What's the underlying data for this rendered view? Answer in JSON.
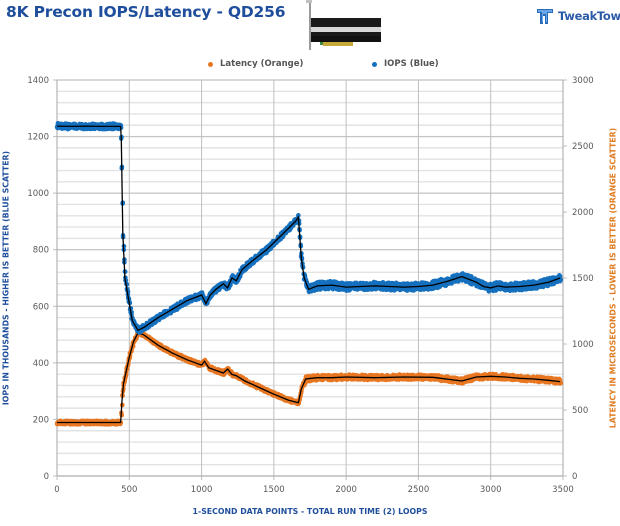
{
  "header": {
    "title": "8K Precon IOPS/Latency - QD256",
    "logo_text": "TweakTown",
    "product_image": "pcie-ssd-add-in-card"
  },
  "legend": {
    "latency_label": "Latency (Orange)",
    "iops_label": "IOPS (Blue)"
  },
  "axes": {
    "left_title": "IOPS IN THOUSANDS - HIGHER IS BETTER (BLUE SCATTER)",
    "right_title": "LATENCY IN MICROSECONDS - LOWER IS BETTER (ORANGE SCATTER)",
    "bottom_title": "1-SECOND  DATA POINTS - TOTAL RUN TIME (2) LOOPS"
  },
  "colors": {
    "iops": "#1570be",
    "latency": "#e87722",
    "trend": "#000000",
    "title": "#1f4e9c",
    "grid_major": "#bfbfbf",
    "grid_minor": "#e3e3e3"
  },
  "chart_data": {
    "type": "scatter",
    "title": "8K Precon IOPS/Latency - QD256",
    "xlabel": "1-SECOND  DATA POINTS - TOTAL RUN TIME (2) LOOPS",
    "ylabel": "IOPS IN THOUSANDS - HIGHER IS BETTER (BLUE SCATTER)",
    "y2label": "LATENCY IN MICROSECONDS - LOWER IS BETTER (ORANGE SCATTER)",
    "xlim": [
      0,
      3500
    ],
    "ylim": [
      0,
      1400
    ],
    "y2lim": [
      0,
      3000
    ],
    "x_ticks": [
      0,
      500,
      1000,
      1500,
      2000,
      2500,
      3000,
      3500
    ],
    "y_ticks": [
      0,
      200,
      400,
      600,
      800,
      1000,
      1200,
      1400
    ],
    "y2_ticks": [
      0,
      500,
      1000,
      1500,
      2000,
      2500,
      3000
    ],
    "grid": true,
    "legend_position": "top",
    "series": [
      {
        "name": "IOPS (Blue)",
        "axis": "left",
        "color": "#1570be",
        "x": [
          0,
          100,
          200,
          300,
          440,
          445,
          455,
          470,
          490,
          520,
          560,
          600,
          700,
          800,
          900,
          1000,
          1030,
          1060,
          1100,
          1150,
          1180,
          1210,
          1240,
          1280,
          1350,
          1450,
          1550,
          1650,
          1670,
          1690,
          1710,
          1740,
          1800,
          1900,
          2000,
          2100,
          2200,
          2300,
          2400,
          2500,
          2600,
          2700,
          2800,
          2900,
          2950,
          3000,
          3050,
          3100,
          3200,
          3300,
          3400,
          3480
        ],
        "values": [
          1237,
          1236,
          1237,
          1236,
          1236,
          1190,
          860,
          700,
          640,
          550,
          515,
          525,
          560,
          590,
          620,
          640,
          610,
          640,
          660,
          680,
          665,
          700,
          690,
          730,
          760,
          800,
          850,
          900,
          915,
          770,
          700,
          660,
          672,
          675,
          668,
          670,
          672,
          670,
          668,
          670,
          675,
          688,
          705,
          685,
          670,
          665,
          672,
          668,
          670,
          675,
          685,
          700
        ]
      },
      {
        "name": "Latency (Orange)",
        "axis": "right",
        "color": "#e87722",
        "x": [
          0,
          100,
          200,
          300,
          440,
          450,
          460,
          480,
          500,
          530,
          560,
          600,
          700,
          800,
          900,
          1000,
          1020,
          1050,
          1100,
          1150,
          1180,
          1210,
          1240,
          1300,
          1400,
          1500,
          1600,
          1670,
          1690,
          1720,
          1760,
          1800,
          1900,
          2000,
          2200,
          2400,
          2600,
          2800,
          2900,
          3000,
          3100,
          3200,
          3300,
          3400,
          3480
        ],
        "values": [
          405,
          405,
          405,
          405,
          405,
          580,
          700,
          800,
          900,
          1020,
          1085,
          1070,
          990,
          930,
          880,
          840,
          870,
          820,
          800,
          780,
          810,
          770,
          760,
          720,
          670,
          620,
          575,
          555,
          660,
          735,
          740,
          745,
          745,
          750,
          745,
          750,
          748,
          720,
          750,
          755,
          750,
          740,
          735,
          725,
          715
        ]
      }
    ]
  }
}
